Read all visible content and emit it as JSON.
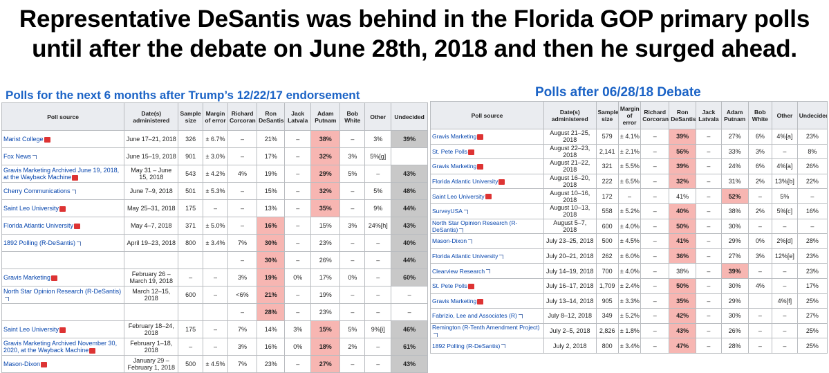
{
  "headline": {
    "line1": "Representative DeSantis was behind in the Florida GOP primary polls",
    "line2": "until after the debate on June 28th, 2018 and then he surged ahead."
  },
  "left_panel": {
    "title": "Polls for the next 6 months after Trump’s 12/22/17 endorsement",
    "headers": [
      "Poll source",
      "Date(s) administered",
      "Sample size",
      "Margin of error",
      "Richard Corcoran",
      "Ron DeSantis",
      "Jack Latvala",
      "Adam Putnam",
      "Bob White",
      "Other",
      "Undecided"
    ],
    "rows": [
      {
        "src": "Marist College",
        "pdf": true,
        "date": "June 17–21, 2018",
        "size": "326",
        "moe": "± 6.7%",
        "corcoran": "–",
        "desantis": "21%",
        "latvala": "–",
        "putnam": "38%",
        "white": "–",
        "other": "3%",
        "und": "39%",
        "lead": "putnam"
      },
      {
        "src": "Fox News",
        "pdf": false,
        "date": "June 15–19, 2018",
        "size": "901",
        "moe": "± 3.0%",
        "corcoran": "–",
        "desantis": "17%",
        "latvala": "–",
        "putnam": "32%",
        "white": "3%",
        "other": "5%[g]",
        "und": "",
        "lead": "putnam"
      },
      {
        "src": "Gravis Marketing Archived June 19, 2018, at the Wayback Machine",
        "pdf": true,
        "date": "May 31 – June 15, 2018",
        "size": "543",
        "moe": "± 4.2%",
        "corcoran": "4%",
        "desantis": "19%",
        "latvala": "–",
        "putnam": "29%",
        "white": "5%",
        "other": "–",
        "und": "43%",
        "lead": "putnam"
      },
      {
        "src": "Cherry Communications",
        "pdf": false,
        "date": "June 7–9, 2018",
        "size": "501",
        "moe": "± 5.3%",
        "corcoran": "–",
        "desantis": "15%",
        "latvala": "–",
        "putnam": "32%",
        "white": "–",
        "other": "5%",
        "und": "48%",
        "lead": "putnam"
      },
      {
        "src": "Saint Leo University",
        "pdf": true,
        "date": "May 25–31, 2018",
        "size": "175",
        "moe": "–",
        "corcoran": "–",
        "desantis": "13%",
        "latvala": "–",
        "putnam": "35%",
        "white": "–",
        "other": "9%",
        "und": "44%",
        "lead": "putnam"
      },
      {
        "src": "Florida Atlantic University",
        "pdf": true,
        "date": "May 4–7, 2018",
        "size": "371",
        "moe": "± 5.0%",
        "corcoran": "–",
        "desantis": "16%",
        "latvala": "–",
        "putnam": "15%",
        "white": "3%",
        "other": "24%[h]",
        "und": "43%",
        "lead": "desantis"
      },
      {
        "src": "1892 Polling (R-DeSantis)",
        "pdf": false,
        "date": "April 19–23, 2018",
        "size": "800",
        "moe": "± 3.4%",
        "corcoran": "7%",
        "desantis": "30%",
        "latvala": "–",
        "putnam": "23%",
        "white": "–",
        "other": "–",
        "und": "40%",
        "lead": "desantis"
      },
      {
        "src": "",
        "pdf": false,
        "date": "",
        "size": "",
        "moe": "",
        "corcoran": "–",
        "desantis": "30%",
        "latvala": "–",
        "putnam": "26%",
        "white": "–",
        "other": "–",
        "und": "44%",
        "lead": "desantis"
      },
      {
        "src": "Gravis Marketing",
        "pdf": true,
        "date": "February 26 – March 19, 2018",
        "size": "–",
        "moe": "–",
        "corcoran": "3%",
        "desantis": "19%",
        "latvala": "0%",
        "putnam": "17%",
        "white": "0%",
        "other": "–",
        "und": "60%",
        "lead": "desantis"
      },
      {
        "src": "North Star Opinion Research (R-DeSantis)",
        "pdf": false,
        "date": "March 12–15, 2018",
        "size": "600",
        "moe": "–",
        "corcoran": "<6%",
        "desantis": "21%",
        "latvala": "–",
        "putnam": "19%",
        "white": "–",
        "other": "–",
        "und": "–",
        "lead": "desantis"
      },
      {
        "src": "",
        "pdf": false,
        "date": "",
        "size": "",
        "moe": "",
        "corcoran": "–",
        "desantis": "28%",
        "latvala": "–",
        "putnam": "23%",
        "white": "–",
        "other": "–",
        "und": "–",
        "lead": "desantis"
      },
      {
        "src": "Saint Leo University",
        "pdf": true,
        "date": "February 18–24, 2018",
        "size": "175",
        "moe": "–",
        "corcoran": "7%",
        "desantis": "14%",
        "latvala": "3%",
        "putnam": "15%",
        "white": "5%",
        "other": "9%[i]",
        "und": "46%",
        "lead": "putnam"
      },
      {
        "src": "Gravis Marketing Archived November 30, 2020, at the Wayback Machine",
        "pdf": true,
        "date": "February 1–18, 2018",
        "size": "–",
        "moe": "–",
        "corcoran": "3%",
        "desantis": "16%",
        "latvala": "0%",
        "putnam": "18%",
        "white": "2%",
        "other": "–",
        "und": "61%",
        "lead": "putnam"
      },
      {
        "src": "Mason-Dixon",
        "pdf": true,
        "date": "January 29 – February 1, 2018",
        "size": "500",
        "moe": "± 4.5%",
        "corcoran": "7%",
        "desantis": "23%",
        "latvala": "–",
        "putnam": "27%",
        "white": "–",
        "other": "–",
        "und": "43%",
        "lead": "putnam"
      }
    ]
  },
  "right_panel": {
    "title": "Polls after 06/28/18 Debate",
    "headers": [
      "Poll source",
      "Date(s) administered",
      "Sample size",
      "Margin of error",
      "Richard Corcoran",
      "Ron DeSantis",
      "Jack Latvala",
      "Adam Putnam",
      "Bob White",
      "Other",
      "Undecided"
    ],
    "rows": [
      {
        "src": "Gravis Marketing",
        "pdf": true,
        "date": "August 21–25, 2018",
        "size": "579",
        "moe": "± 4.1%",
        "corcoran": "–",
        "desantis": "39%",
        "latvala": "–",
        "putnam": "27%",
        "white": "6%",
        "other": "4%[a]",
        "und": "23%",
        "lead": "desantis"
      },
      {
        "src": "St. Pete Polls",
        "pdf": true,
        "date": "August 22–23, 2018",
        "size": "2,141",
        "moe": "± 2.1%",
        "corcoran": "–",
        "desantis": "56%",
        "latvala": "–",
        "putnam": "33%",
        "white": "3%",
        "other": "–",
        "und": "8%",
        "lead": "desantis"
      },
      {
        "src": "Gravis Marketing",
        "pdf": true,
        "date": "August 21–22, 2018",
        "size": "321",
        "moe": "± 5.5%",
        "corcoran": "–",
        "desantis": "39%",
        "latvala": "–",
        "putnam": "24%",
        "white": "6%",
        "other": "4%[a]",
        "und": "26%",
        "lead": "desantis"
      },
      {
        "src": "Florida Atlantic University",
        "pdf": true,
        "date": "August 16–20, 2018",
        "size": "222",
        "moe": "± 6.5%",
        "corcoran": "–",
        "desantis": "32%",
        "latvala": "–",
        "putnam": "31%",
        "white": "2%",
        "other": "13%[b]",
        "und": "22%",
        "lead": "desantis"
      },
      {
        "src": "Saint Leo University",
        "pdf": true,
        "date": "August 10–16, 2018",
        "size": "172",
        "moe": "–",
        "corcoran": "–",
        "desantis": "41%",
        "latvala": "–",
        "putnam": "52%",
        "white": "–",
        "other": "5%",
        "und": "–",
        "lead": "putnam"
      },
      {
        "src": "SurveyUSA",
        "pdf": false,
        "date": "August 10–13, 2018",
        "size": "558",
        "moe": "± 5.2%",
        "corcoran": "–",
        "desantis": "40%",
        "latvala": "–",
        "putnam": "38%",
        "white": "2%",
        "other": "5%[c]",
        "und": "16%",
        "lead": "desantis"
      },
      {
        "src": "North Star Opinion Research (R-DeSantis)",
        "pdf": false,
        "date": "August 5–7, 2018",
        "size": "600",
        "moe": "± 4.0%",
        "corcoran": "–",
        "desantis": "50%",
        "latvala": "–",
        "putnam": "30%",
        "white": "–",
        "other": "–",
        "und": "–",
        "lead": "desantis"
      },
      {
        "src": "Mason-Dixon",
        "pdf": false,
        "date": "July 23–25, 2018",
        "size": "500",
        "moe": "± 4.5%",
        "corcoran": "–",
        "desantis": "41%",
        "latvala": "–",
        "putnam": "29%",
        "white": "0%",
        "other": "2%[d]",
        "und": "28%",
        "lead": "desantis"
      },
      {
        "src": "Florida Atlantic University",
        "pdf": false,
        "date": "July 20–21, 2018",
        "size": "262",
        "moe": "± 6.0%",
        "corcoran": "–",
        "desantis": "36%",
        "latvala": "–",
        "putnam": "27%",
        "white": "3%",
        "other": "12%[e]",
        "und": "23%",
        "lead": "desantis"
      },
      {
        "src": "Clearview Research",
        "pdf": false,
        "date": "July 14–19, 2018",
        "size": "700",
        "moe": "± 4.0%",
        "corcoran": "–",
        "desantis": "38%",
        "latvala": "–",
        "putnam": "39%",
        "white": "–",
        "other": "–",
        "und": "23%",
        "lead": "putnam"
      },
      {
        "src": "St. Pete Polls",
        "pdf": true,
        "date": "July 16–17, 2018",
        "size": "1,709",
        "moe": "± 2.4%",
        "corcoran": "–",
        "desantis": "50%",
        "latvala": "–",
        "putnam": "30%",
        "white": "4%",
        "other": "–",
        "und": "17%",
        "lead": "desantis"
      },
      {
        "src": "Gravis Marketing",
        "pdf": true,
        "date": "July 13–14, 2018",
        "size": "905",
        "moe": "± 3.3%",
        "corcoran": "–",
        "desantis": "35%",
        "latvala": "–",
        "putnam": "29%",
        "white": "",
        "other": "4%[f]",
        "und": "25%",
        "lead": "desantis"
      },
      {
        "src": "Fabrizio, Lee and Associates (R)",
        "pdf": false,
        "date": "July 8–12, 2018",
        "size": "349",
        "moe": "± 5.2%",
        "corcoran": "–",
        "desantis": "42%",
        "latvala": "–",
        "putnam": "30%",
        "white": "–",
        "other": "–",
        "und": "27%",
        "lead": "desantis"
      },
      {
        "src": "Remington (R-Tenth Amendment Project)",
        "pdf": false,
        "date": "July 2–5, 2018",
        "size": "2,826",
        "moe": "± 1.8%",
        "corcoran": "–",
        "desantis": "43%",
        "latvala": "–",
        "putnam": "26%",
        "white": "–",
        "other": "–",
        "und": "25%",
        "lead": "desantis"
      },
      {
        "src": "1892 Polling (R-DeSantis)",
        "pdf": false,
        "date": "July 2, 2018",
        "size": "800",
        "moe": "± 3.4%",
        "corcoran": "–",
        "desantis": "47%",
        "latvala": "–",
        "putnam": "28%",
        "white": "–",
        "other": "–",
        "und": "25%",
        "lead": "desantis"
      }
    ]
  }
}
